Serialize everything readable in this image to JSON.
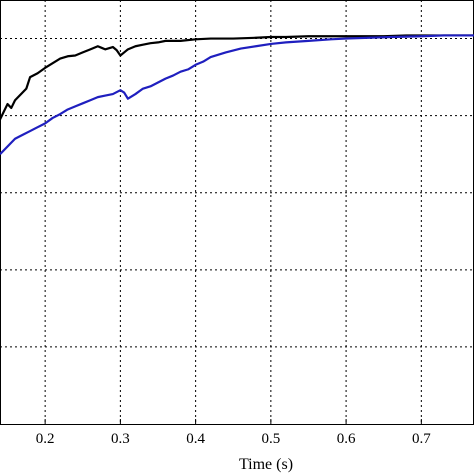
{
  "chart_data": {
    "type": "line",
    "title": "",
    "xlabel": "Time (s)",
    "ylabel": "",
    "xlim": [
      0.14,
      0.77
    ],
    "ylim": [
      0,
      5.5
    ],
    "x_ticks": [
      "0.2",
      "0.3",
      "0.4",
      "0.5",
      "0.6",
      "0.7"
    ],
    "x_tick_values": [
      0.2,
      0.3,
      0.4,
      0.5,
      0.6,
      0.7
    ],
    "y_grid_values": [
      1,
      2,
      3,
      4,
      5
    ],
    "grid": true,
    "legend": "none",
    "series": [
      {
        "color": "#000000",
        "x": [
          0.14,
          0.145,
          0.15,
          0.155,
          0.16,
          0.165,
          0.17,
          0.175,
          0.18,
          0.19,
          0.2,
          0.21,
          0.22,
          0.23,
          0.24,
          0.25,
          0.26,
          0.27,
          0.275,
          0.28,
          0.29,
          0.295,
          0.3,
          0.305,
          0.31,
          0.32,
          0.33,
          0.34,
          0.35,
          0.36,
          0.38,
          0.4,
          0.42,
          0.45,
          0.48,
          0.5,
          0.52,
          0.55,
          0.58,
          0.6,
          0.62,
          0.65,
          0.68,
          0.7,
          0.72,
          0.75,
          0.77
        ],
        "y": [
          3.95,
          4.05,
          4.15,
          4.1,
          4.2,
          4.25,
          4.3,
          4.35,
          4.5,
          4.55,
          4.62,
          4.68,
          4.74,
          4.77,
          4.78,
          4.82,
          4.86,
          4.9,
          4.88,
          4.86,
          4.89,
          4.85,
          4.78,
          4.82,
          4.86,
          4.9,
          4.92,
          4.94,
          4.95,
          4.97,
          4.97,
          4.99,
          5.0,
          5.0,
          5.01,
          5.02,
          5.02,
          5.03,
          5.03,
          5.03,
          5.03,
          5.03,
          5.04,
          5.04,
          5.04,
          5.04,
          5.04
        ]
      },
      {
        "color": "#1f1fbf",
        "x": [
          0.14,
          0.15,
          0.16,
          0.17,
          0.18,
          0.19,
          0.2,
          0.21,
          0.22,
          0.23,
          0.24,
          0.25,
          0.26,
          0.27,
          0.28,
          0.29,
          0.3,
          0.305,
          0.31,
          0.32,
          0.33,
          0.34,
          0.35,
          0.36,
          0.37,
          0.38,
          0.39,
          0.4,
          0.41,
          0.42,
          0.44,
          0.46,
          0.48,
          0.5,
          0.52,
          0.55,
          0.58,
          0.6,
          0.63,
          0.66,
          0.7,
          0.73,
          0.77
        ],
        "y": [
          3.5,
          3.6,
          3.7,
          3.75,
          3.8,
          3.85,
          3.9,
          3.97,
          4.02,
          4.08,
          4.12,
          4.16,
          4.2,
          4.24,
          4.26,
          4.28,
          4.33,
          4.3,
          4.22,
          4.28,
          4.35,
          4.38,
          4.43,
          4.48,
          4.52,
          4.57,
          4.6,
          4.66,
          4.7,
          4.76,
          4.82,
          4.87,
          4.9,
          4.93,
          4.95,
          4.97,
          4.99,
          5.0,
          5.01,
          5.02,
          5.03,
          5.04,
          5.04
        ]
      }
    ]
  }
}
